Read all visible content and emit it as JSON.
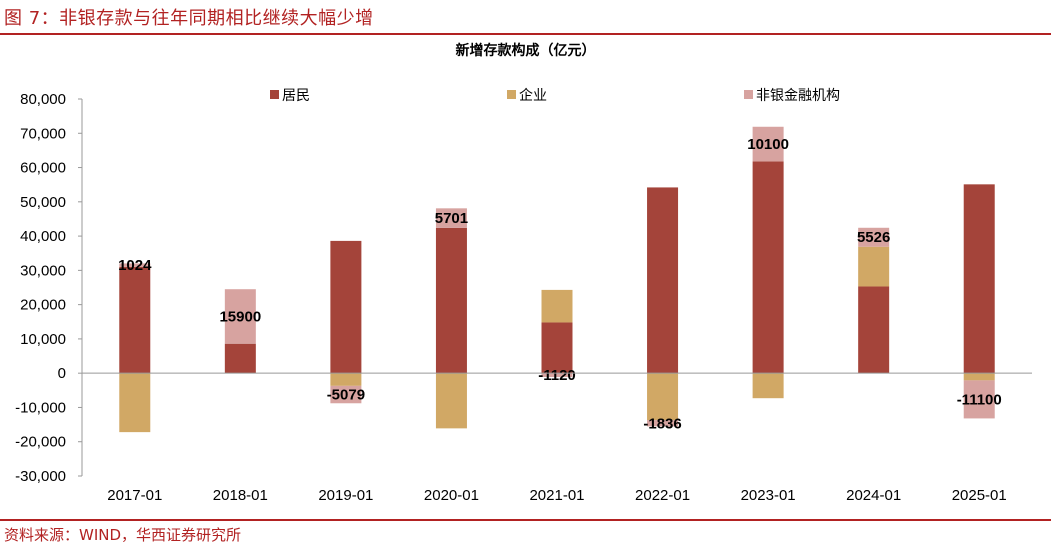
{
  "figure_title": "图 7：非银存款与往年同期相比继续大幅少增",
  "source": "资料来源：WIND，华西证券研究所",
  "colors": {
    "residents": "#a4443a",
    "enterprises": "#d1a865",
    "nonbank": "#d7a3a0",
    "accent": "#b22222"
  },
  "chart_data": {
    "type": "bar",
    "stacked": true,
    "title": "新增存款构成（亿元）",
    "categories": [
      "2017-01",
      "2018-01",
      "2019-01",
      "2020-01",
      "2021-01",
      "2022-01",
      "2023-01",
      "2024-01",
      "2025-01"
    ],
    "series": [
      {
        "name": "居民",
        "values": [
          31000,
          8600,
          38600,
          42400,
          14800,
          54200,
          61800,
          25300,
          55100
        ]
      },
      {
        "name": "企业",
        "values": [
          -17200,
          0,
          -3700,
          -16100,
          9500,
          -13700,
          -7300,
          11600,
          -2100
        ]
      },
      {
        "name": "非银金融机构",
        "values": [
          1024,
          15900,
          -5079,
          5701,
          -1120,
          -1836,
          10100,
          5526,
          -11100
        ]
      }
    ],
    "data_labels": [
      "1024",
      "15900",
      "-5079",
      "5701",
      "-1120",
      "-1836",
      "10100",
      "5526",
      "-11100"
    ],
    "ylim": [
      -30000,
      80000
    ],
    "yticks": [
      "-30,000",
      "-20,000",
      "-10,000",
      "0",
      "10,000",
      "20,000",
      "30,000",
      "40,000",
      "50,000",
      "60,000",
      "70,000",
      "80,000"
    ],
    "legend_position": "top",
    "grid": false
  }
}
